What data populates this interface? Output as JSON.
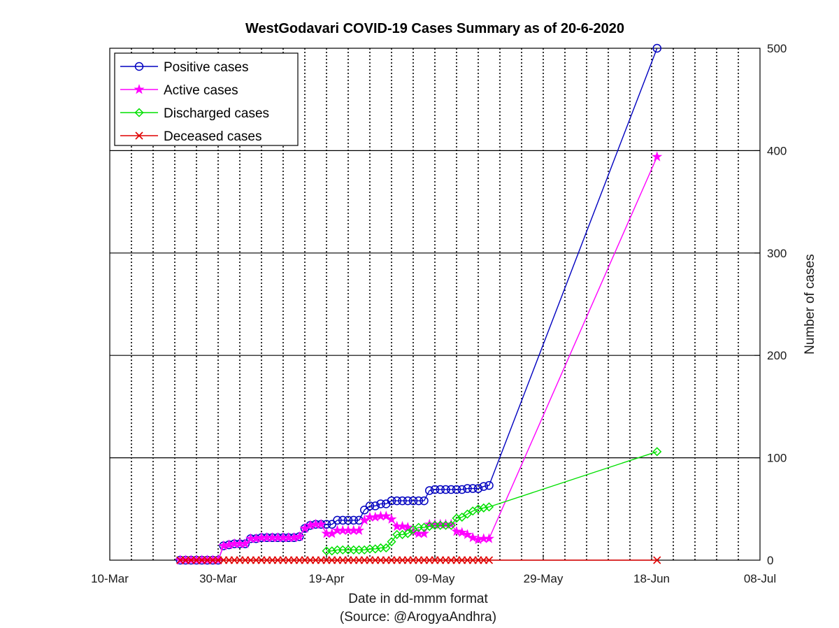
{
  "chart_data": {
    "type": "line",
    "title": "WestGodavari COVID-19 Cases Summary as of 20-6-2020",
    "xlabel": "Date in dd-mmm format",
    "xlabel2": "(Source: @ArogyaAndhra)",
    "ylabel": "Number of cases",
    "x_axis": {
      "min": "2020-03-10",
      "max": "2020-07-08",
      "tick_dates": [
        "2020-03-10",
        "2020-03-30",
        "2020-04-19",
        "2020-05-09",
        "2020-05-29",
        "2020-06-18",
        "2020-07-08"
      ],
      "tick_labels": [
        "10-Mar",
        "30-Mar",
        "19-Apr",
        "09-May",
        "29-May",
        "18-Jun",
        "08-Jul"
      ],
      "minor_grid_step_days": 4
    },
    "y_axis": {
      "min": 0,
      "max": 500,
      "ticks": [
        0,
        100,
        200,
        300,
        400,
        500
      ],
      "position": "right"
    },
    "grid": {
      "x": "dotted",
      "y": "solid"
    },
    "legend": {
      "position": "top-left"
    },
    "series": [
      {
        "name": "Positive cases",
        "color": "#0000c0",
        "marker": "circle",
        "points": [
          [
            "2020-03-23",
            0
          ],
          [
            "2020-03-24",
            0
          ],
          [
            "2020-03-25",
            0
          ],
          [
            "2020-03-26",
            0
          ],
          [
            "2020-03-27",
            0
          ],
          [
            "2020-03-28",
            0
          ],
          [
            "2020-03-29",
            0
          ],
          [
            "2020-03-30",
            0
          ],
          [
            "2020-03-31",
            14
          ],
          [
            "2020-04-01",
            15
          ],
          [
            "2020-04-02",
            16
          ],
          [
            "2020-04-03",
            16
          ],
          [
            "2020-04-04",
            16
          ],
          [
            "2020-04-05",
            21
          ],
          [
            "2020-04-06",
            21
          ],
          [
            "2020-04-07",
            22
          ],
          [
            "2020-04-08",
            22
          ],
          [
            "2020-04-09",
            22
          ],
          [
            "2020-04-10",
            22
          ],
          [
            "2020-04-11",
            22
          ],
          [
            "2020-04-12",
            22
          ],
          [
            "2020-04-13",
            22
          ],
          [
            "2020-04-14",
            23
          ],
          [
            "2020-04-15",
            31
          ],
          [
            "2020-04-16",
            34
          ],
          [
            "2020-04-17",
            35
          ],
          [
            "2020-04-18",
            35
          ],
          [
            "2020-04-19",
            35
          ],
          [
            "2020-04-20",
            35
          ],
          [
            "2020-04-21",
            39
          ],
          [
            "2020-04-22",
            39
          ],
          [
            "2020-04-23",
            39
          ],
          [
            "2020-04-24",
            39
          ],
          [
            "2020-04-25",
            39
          ],
          [
            "2020-04-26",
            49
          ],
          [
            "2020-04-27",
            53
          ],
          [
            "2020-04-28",
            53
          ],
          [
            "2020-04-29",
            55
          ],
          [
            "2020-04-30",
            55
          ],
          [
            "2020-05-01",
            58
          ],
          [
            "2020-05-02",
            58
          ],
          [
            "2020-05-03",
            58
          ],
          [
            "2020-05-04",
            58
          ],
          [
            "2020-05-05",
            58
          ],
          [
            "2020-05-06",
            58
          ],
          [
            "2020-05-07",
            58
          ],
          [
            "2020-05-08",
            68
          ],
          [
            "2020-05-09",
            69
          ],
          [
            "2020-05-10",
            69
          ],
          [
            "2020-05-11",
            69
          ],
          [
            "2020-05-12",
            69
          ],
          [
            "2020-05-13",
            69
          ],
          [
            "2020-05-14",
            69
          ],
          [
            "2020-05-15",
            70
          ],
          [
            "2020-05-16",
            70
          ],
          [
            "2020-05-17",
            70
          ],
          [
            "2020-05-18",
            72
          ],
          [
            "2020-05-19",
            73
          ],
          [
            "2020-06-19",
            500
          ]
        ]
      },
      {
        "name": "Active cases",
        "color": "#ff00ff",
        "marker": "star",
        "points": [
          [
            "2020-03-23",
            0
          ],
          [
            "2020-03-24",
            0
          ],
          [
            "2020-03-25",
            0
          ],
          [
            "2020-03-26",
            0
          ],
          [
            "2020-03-27",
            0
          ],
          [
            "2020-03-28",
            0
          ],
          [
            "2020-03-29",
            0
          ],
          [
            "2020-03-30",
            0
          ],
          [
            "2020-03-31",
            14
          ],
          [
            "2020-04-01",
            15
          ],
          [
            "2020-04-02",
            16
          ],
          [
            "2020-04-03",
            16
          ],
          [
            "2020-04-04",
            16
          ],
          [
            "2020-04-05",
            21
          ],
          [
            "2020-04-06",
            21
          ],
          [
            "2020-04-07",
            22
          ],
          [
            "2020-04-08",
            22
          ],
          [
            "2020-04-09",
            22
          ],
          [
            "2020-04-10",
            22
          ],
          [
            "2020-04-11",
            22
          ],
          [
            "2020-04-12",
            22
          ],
          [
            "2020-04-13",
            22
          ],
          [
            "2020-04-14",
            23
          ],
          [
            "2020-04-15",
            31
          ],
          [
            "2020-04-16",
            34
          ],
          [
            "2020-04-17",
            35
          ],
          [
            "2020-04-18",
            35
          ],
          [
            "2020-04-19",
            26
          ],
          [
            "2020-04-20",
            26
          ],
          [
            "2020-04-21",
            29
          ],
          [
            "2020-04-22",
            29
          ],
          [
            "2020-04-23",
            29
          ],
          [
            "2020-04-24",
            29
          ],
          [
            "2020-04-25",
            29
          ],
          [
            "2020-04-26",
            39
          ],
          [
            "2020-04-27",
            42
          ],
          [
            "2020-04-28",
            42
          ],
          [
            "2020-04-29",
            43
          ],
          [
            "2020-04-30",
            43
          ],
          [
            "2020-05-01",
            40
          ],
          [
            "2020-05-02",
            33
          ],
          [
            "2020-05-03",
            33
          ],
          [
            "2020-05-04",
            32
          ],
          [
            "2020-05-05",
            28
          ],
          [
            "2020-05-06",
            26
          ],
          [
            "2020-05-07",
            26
          ],
          [
            "2020-05-08",
            35
          ],
          [
            "2020-05-09",
            35
          ],
          [
            "2020-05-10",
            35
          ],
          [
            "2020-05-11",
            35
          ],
          [
            "2020-05-12",
            35
          ],
          [
            "2020-05-13",
            28
          ],
          [
            "2020-05-14",
            27
          ],
          [
            "2020-05-15",
            25
          ],
          [
            "2020-05-16",
            22
          ],
          [
            "2020-05-17",
            20
          ],
          [
            "2020-05-18",
            21
          ],
          [
            "2020-05-19",
            21
          ],
          [
            "2020-06-19",
            394
          ]
        ]
      },
      {
        "name": "Discharged cases",
        "color": "#00e000",
        "marker": "diamond",
        "points": [
          [
            "2020-04-19",
            9
          ],
          [
            "2020-04-20",
            9
          ],
          [
            "2020-04-21",
            10
          ],
          [
            "2020-04-22",
            10
          ],
          [
            "2020-04-23",
            10
          ],
          [
            "2020-04-24",
            10
          ],
          [
            "2020-04-25",
            10
          ],
          [
            "2020-04-26",
            10
          ],
          [
            "2020-04-27",
            11
          ],
          [
            "2020-04-28",
            11
          ],
          [
            "2020-04-29",
            12
          ],
          [
            "2020-04-30",
            12
          ],
          [
            "2020-05-01",
            18
          ],
          [
            "2020-05-02",
            25
          ],
          [
            "2020-05-03",
            25
          ],
          [
            "2020-05-04",
            26
          ],
          [
            "2020-05-05",
            30
          ],
          [
            "2020-05-06",
            32
          ],
          [
            "2020-05-07",
            32
          ],
          [
            "2020-05-08",
            33
          ],
          [
            "2020-05-09",
            34
          ],
          [
            "2020-05-10",
            34
          ],
          [
            "2020-05-11",
            34
          ],
          [
            "2020-05-12",
            34
          ],
          [
            "2020-05-13",
            41
          ],
          [
            "2020-05-14",
            42
          ],
          [
            "2020-05-15",
            45
          ],
          [
            "2020-05-16",
            48
          ],
          [
            "2020-05-17",
            50
          ],
          [
            "2020-05-18",
            51
          ],
          [
            "2020-05-19",
            52
          ],
          [
            "2020-06-19",
            106
          ]
        ]
      },
      {
        "name": "Deceased cases",
        "color": "#e00000",
        "marker": "x",
        "points": [
          [
            "2020-03-23",
            0
          ],
          [
            "2020-03-24",
            0
          ],
          [
            "2020-03-25",
            0
          ],
          [
            "2020-03-26",
            0
          ],
          [
            "2020-03-27",
            0
          ],
          [
            "2020-03-28",
            0
          ],
          [
            "2020-03-29",
            0
          ],
          [
            "2020-03-30",
            0
          ],
          [
            "2020-03-31",
            0
          ],
          [
            "2020-04-01",
            0
          ],
          [
            "2020-04-02",
            0
          ],
          [
            "2020-04-03",
            0
          ],
          [
            "2020-04-04",
            0
          ],
          [
            "2020-04-05",
            0
          ],
          [
            "2020-04-06",
            0
          ],
          [
            "2020-04-07",
            0
          ],
          [
            "2020-04-08",
            0
          ],
          [
            "2020-04-09",
            0
          ],
          [
            "2020-04-10",
            0
          ],
          [
            "2020-04-11",
            0
          ],
          [
            "2020-04-12",
            0
          ],
          [
            "2020-04-13",
            0
          ],
          [
            "2020-04-14",
            0
          ],
          [
            "2020-04-15",
            0
          ],
          [
            "2020-04-16",
            0
          ],
          [
            "2020-04-17",
            0
          ],
          [
            "2020-04-18",
            0
          ],
          [
            "2020-04-19",
            0
          ],
          [
            "2020-04-20",
            0
          ],
          [
            "2020-04-21",
            0
          ],
          [
            "2020-04-22",
            0
          ],
          [
            "2020-04-23",
            0
          ],
          [
            "2020-04-24",
            0
          ],
          [
            "2020-04-25",
            0
          ],
          [
            "2020-04-26",
            0
          ],
          [
            "2020-04-27",
            0
          ],
          [
            "2020-04-28",
            0
          ],
          [
            "2020-04-29",
            0
          ],
          [
            "2020-04-30",
            0
          ],
          [
            "2020-05-01",
            0
          ],
          [
            "2020-05-02",
            0
          ],
          [
            "2020-05-03",
            0
          ],
          [
            "2020-05-04",
            0
          ],
          [
            "2020-05-05",
            0
          ],
          [
            "2020-05-06",
            0
          ],
          [
            "2020-05-07",
            0
          ],
          [
            "2020-05-08",
            0
          ],
          [
            "2020-05-09",
            0
          ],
          [
            "2020-05-10",
            0
          ],
          [
            "2020-05-11",
            0
          ],
          [
            "2020-05-12",
            0
          ],
          [
            "2020-05-13",
            0
          ],
          [
            "2020-05-14",
            0
          ],
          [
            "2020-05-15",
            0
          ],
          [
            "2020-05-16",
            0
          ],
          [
            "2020-05-17",
            0
          ],
          [
            "2020-05-18",
            0
          ],
          [
            "2020-05-19",
            0
          ],
          [
            "2020-06-19",
            0
          ]
        ]
      }
    ]
  }
}
